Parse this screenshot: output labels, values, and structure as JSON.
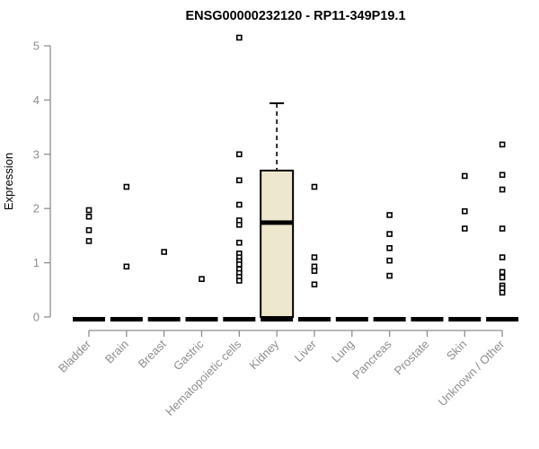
{
  "chart_data": {
    "type": "boxplot-scatter",
    "title": "ENSG00000232120 - RP11-349P19.1",
    "ylabel": "Expression",
    "xlabel": "",
    "ylim": [
      0,
      5
    ],
    "yticks": [
      0,
      1,
      2,
      3,
      4,
      5
    ],
    "grid": "off",
    "legend": "none",
    "categories": [
      "Bladder",
      "Brain",
      "Breast",
      "Gastric",
      "Hematopoietic cells",
      "Kidney",
      "Liver",
      "Lung",
      "Pancreas",
      "Prostate",
      "Skin",
      "Unknown / Other"
    ],
    "series": [
      {
        "category": "Bladder",
        "points": [
          1.97,
          1.85,
          1.6,
          1.4
        ],
        "zero_bar": true,
        "box": null
      },
      {
        "category": "Brain",
        "points": [
          2.4,
          0.93
        ],
        "zero_bar": true,
        "box": null
      },
      {
        "category": "Breast",
        "points": [
          1.2
        ],
        "zero_bar": true,
        "box": null
      },
      {
        "category": "Gastric",
        "points": [
          0.7
        ],
        "zero_bar": true,
        "box": null
      },
      {
        "category": "Hematopoietic cells",
        "points": [
          5.15,
          3.0,
          2.52,
          2.07,
          1.78,
          1.7,
          1.37,
          1.17,
          1.1,
          1.03,
          0.97,
          0.88,
          0.81,
          0.74,
          0.67
        ],
        "zero_bar": true,
        "box": null
      },
      {
        "category": "Kidney",
        "points": [],
        "zero_bar": false,
        "box": {
          "whisker_high": 3.94,
          "q3": 2.7,
          "median": 1.74,
          "q1": 0.0
        }
      },
      {
        "category": "Liver",
        "points": [
          2.4,
          1.1,
          0.93,
          0.85,
          0.6
        ],
        "zero_bar": true,
        "box": null
      },
      {
        "category": "Lung",
        "points": [],
        "zero_bar": true,
        "box": null
      },
      {
        "category": "Pancreas",
        "points": [
          1.88,
          1.53,
          1.27,
          1.04,
          0.76
        ],
        "zero_bar": true,
        "box": null
      },
      {
        "category": "Prostate",
        "points": [],
        "zero_bar": true,
        "box": null
      },
      {
        "category": "Skin",
        "points": [
          2.6,
          1.95,
          1.63
        ],
        "zero_bar": true,
        "box": null
      },
      {
        "category": "Unknown / Other",
        "points": [
          3.18,
          2.62,
          2.35,
          1.63,
          1.1,
          0.83,
          0.73,
          0.58,
          0.53,
          0.45
        ],
        "zero_bar": true,
        "box": null
      }
    ],
    "colors": {
      "box_fill": "#EDE7CD",
      "box_stroke": "#000000",
      "marker_stroke": "#000000",
      "marker_fill": "#ffffff",
      "zero_bar": "#000000",
      "axis": "#8E8E8E",
      "label_text": "#8E8E8E",
      "title_text": "#000000"
    }
  }
}
